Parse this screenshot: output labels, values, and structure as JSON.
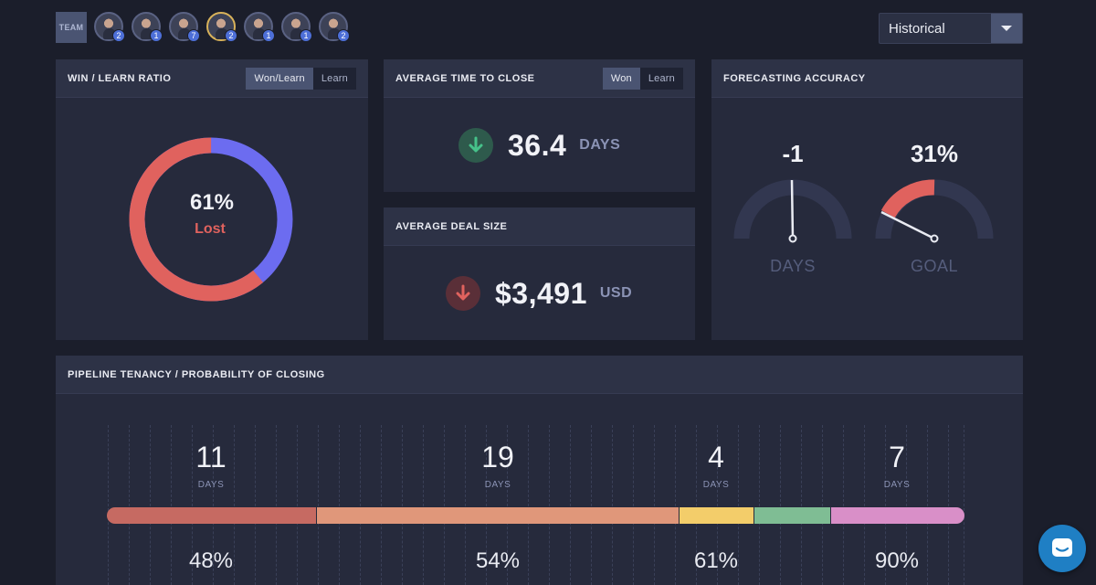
{
  "topbar": {
    "team_label": "TEAM",
    "avatars": [
      {
        "count": "2",
        "highlight": false
      },
      {
        "count": "1",
        "highlight": false
      },
      {
        "count": "7",
        "highlight": false
      },
      {
        "count": "2",
        "highlight": true
      },
      {
        "count": "1",
        "highlight": false
      },
      {
        "count": "1",
        "highlight": false
      },
      {
        "count": "2",
        "highlight": false
      }
    ],
    "period_select": "Historical"
  },
  "win_learn": {
    "title": "WIN / LEARN RATIO",
    "toggle": [
      "Won/Learn",
      "Learn"
    ],
    "active_toggle": "Won/Learn",
    "percent": "61%",
    "status": "Lost",
    "lost_fraction": 0.61,
    "colors": {
      "lost": "#e0625e",
      "won": "#6c6cf0"
    }
  },
  "avg_time": {
    "title": "AVERAGE TIME TO CLOSE",
    "toggle": [
      "Won",
      "Learn"
    ],
    "active_toggle": "Won",
    "value": "36.4",
    "unit": "DAYS",
    "trend_icon": "arrow-down-icon",
    "trend_color": "#46c28a"
  },
  "avg_deal": {
    "title": "AVERAGE DEAL SIZE",
    "value": "$3,491",
    "unit": "USD",
    "trend_icon": "arrow-down-icon",
    "trend_color": "#e0625e"
  },
  "forecast": {
    "title": "FORECASTING ACCURACY",
    "gauges": [
      {
        "value": "-1",
        "label": "DAYS"
      },
      {
        "value": "31%",
        "label": "GOAL",
        "fill_fraction": 0.31
      }
    ]
  },
  "pipeline": {
    "title": "PIPELINE TENANCY / PROBABILITY OF CLOSING",
    "stages": [
      {
        "days": "11",
        "days_label": "DAYS",
        "probability": "48%",
        "color": "#c66a62"
      },
      {
        "days": "19",
        "days_label": "DAYS",
        "probability": "54%",
        "color": "#e0977a"
      },
      {
        "days": "4",
        "days_label": "DAYS",
        "probability": "61%",
        "color": "#f3cd6a"
      },
      {
        "days": "7",
        "days_label": "DAYS",
        "probability": "90%",
        "color": "#7fbd94"
      }
    ],
    "extra_segment_color": "#d98fc8"
  }
}
